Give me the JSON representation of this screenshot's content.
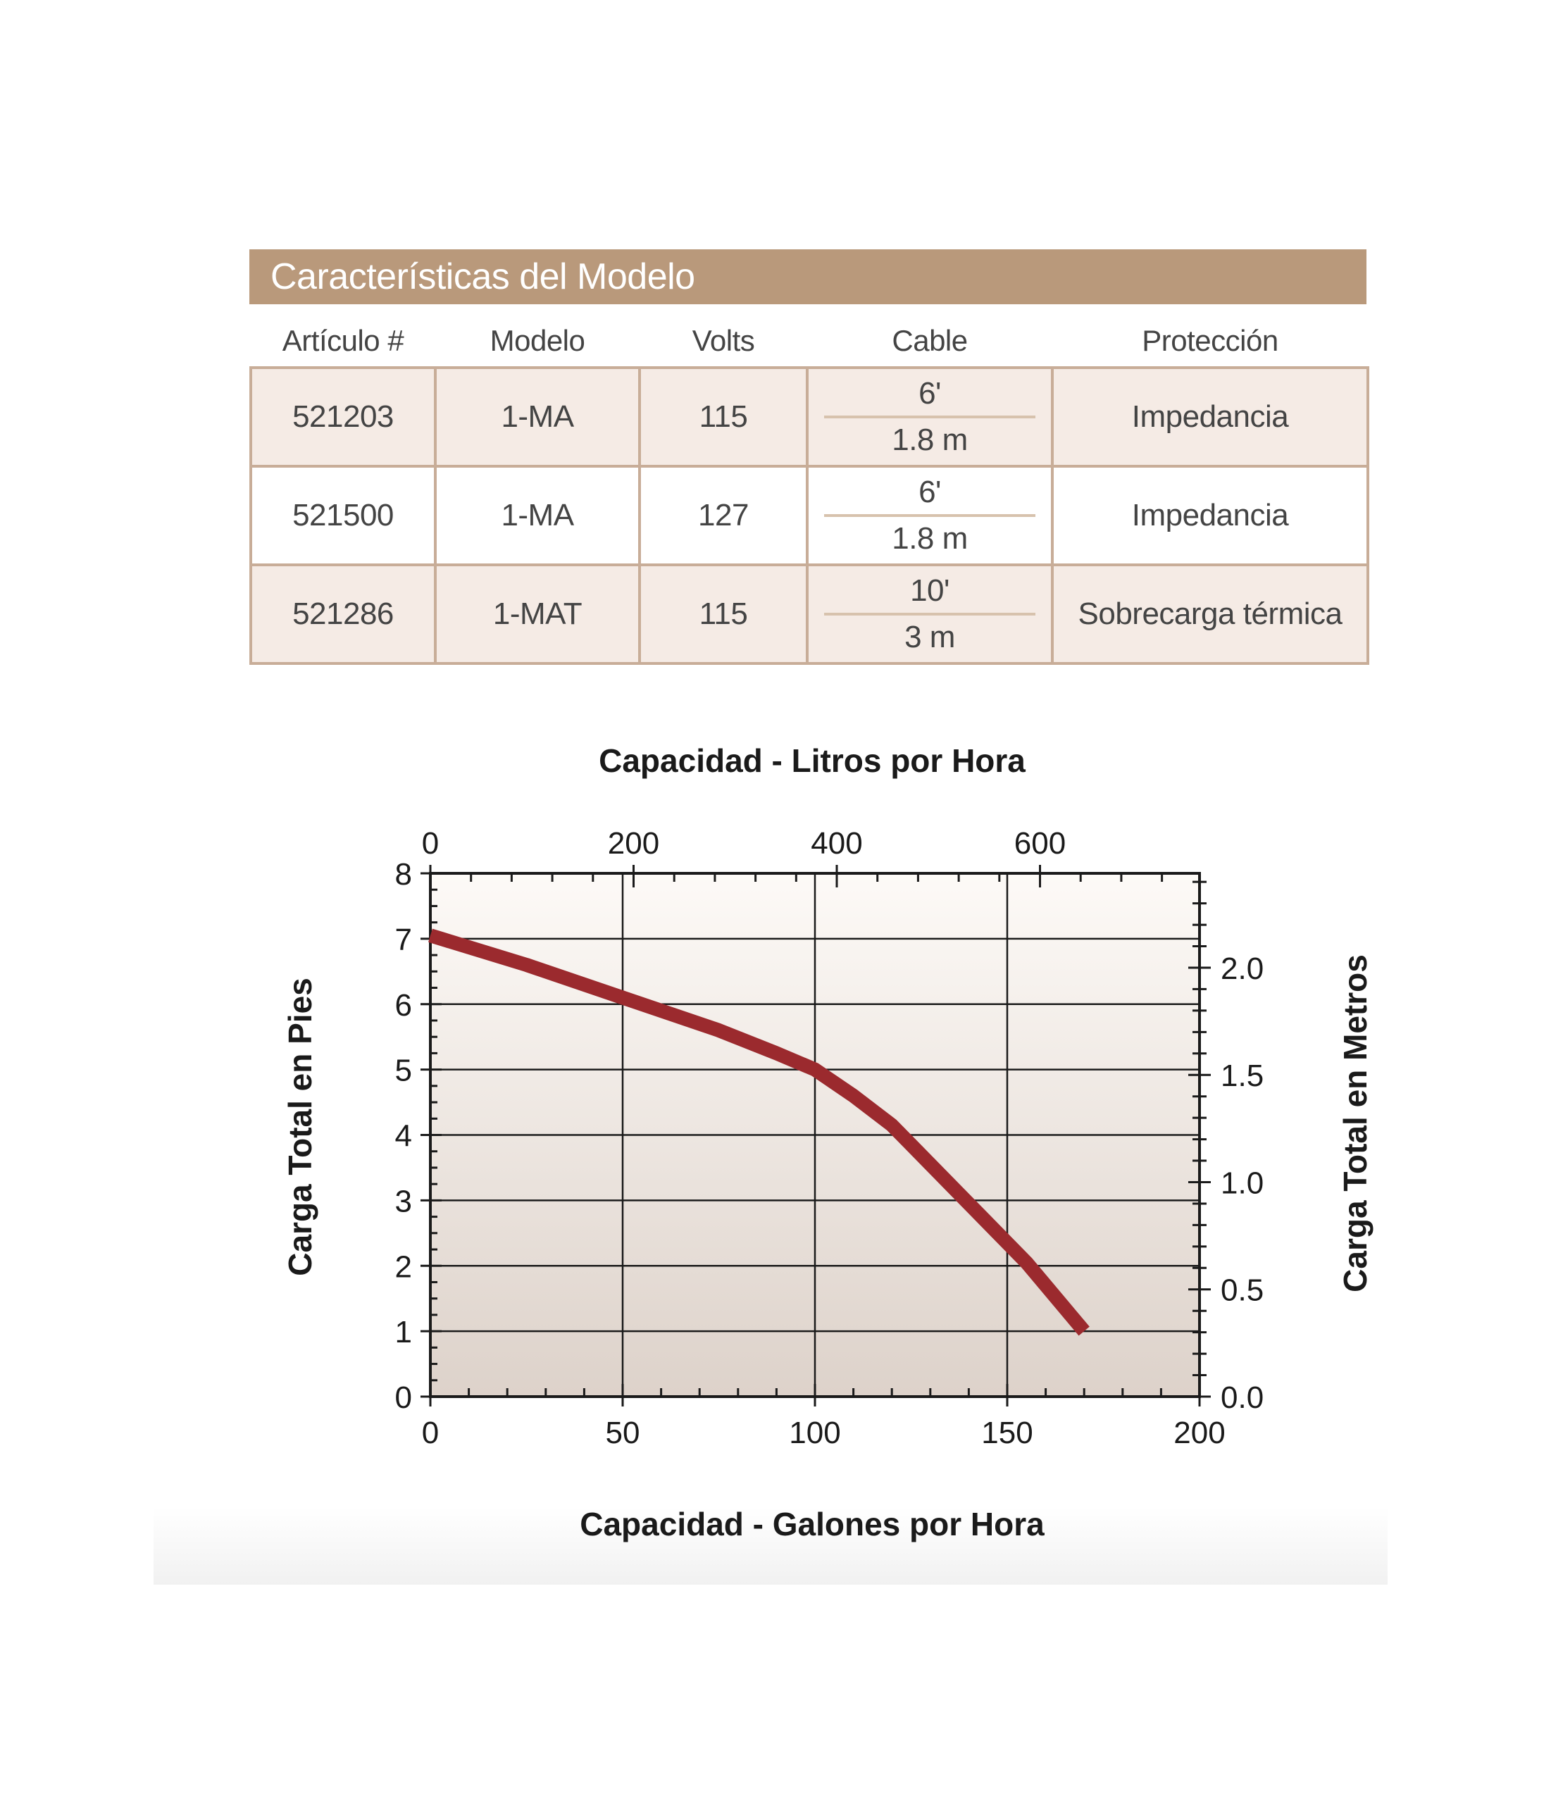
{
  "table": {
    "title": "Características del Modelo",
    "headers": [
      "Artículo #",
      "Modelo",
      "Volts",
      "Cable",
      "Protección"
    ],
    "rows": [
      {
        "articulo": "521203",
        "modelo": "1-MA",
        "volts": "115",
        "cable_ft": "6'",
        "cable_m": "1.8 m",
        "proteccion": "Impedancia"
      },
      {
        "articulo": "521500",
        "modelo": "1-MA",
        "volts": "127",
        "cable_ft": "6'",
        "cable_m": "1.8 m",
        "proteccion": "Impedancia"
      },
      {
        "articulo": "521286",
        "modelo": "1-MAT",
        "volts": "115",
        "cable_ft": "10'",
        "cable_m": "3 m",
        "proteccion": "Sobrecarga térmica"
      }
    ],
    "colors": {
      "header_bar": "#b9997b",
      "border": "#c8ad98",
      "shaded_row": "#f5ebe5"
    }
  },
  "chart_data": {
    "type": "line",
    "title": "Capacidad - Litros por Hora",
    "xlabel": "Capacidad - Galones por Hora",
    "ylabel": "Carga Total en Pies",
    "y2label": "Carga Total en Metros",
    "x_ticks": [
      0,
      50,
      100,
      150,
      200
    ],
    "x2_ticks": [
      0,
      200,
      400,
      600
    ],
    "y_ticks": [
      0,
      1,
      2,
      3,
      4,
      5,
      6,
      7,
      8
    ],
    "y2_ticks": [
      "0.0",
      "0.5",
      "1.0",
      "1.5",
      "2.0"
    ],
    "xlim": [
      0,
      200
    ],
    "ylim": [
      0,
      8
    ],
    "x2lim": [
      0,
      757
    ],
    "y2lim": [
      0,
      2.44
    ],
    "grid": true,
    "series": [
      {
        "x": [
          0,
          25,
          50,
          75,
          90,
          100,
          110,
          120,
          125,
          140,
          155,
          170
        ],
        "y": [
          7.05,
          6.6,
          6.1,
          5.6,
          5.25,
          5.0,
          4.6,
          4.15,
          3.85,
          2.95,
          2.05,
          1.0
        ]
      }
    ],
    "colors": {
      "line": "#9b2a2e",
      "plot_top": "#fdfaf7",
      "plot_bottom": "#ddd2ca"
    }
  }
}
